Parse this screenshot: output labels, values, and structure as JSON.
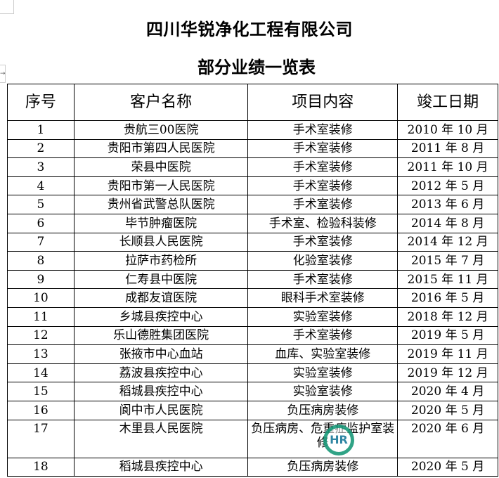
{
  "title": "四川华锐净化工程有限公司",
  "subtitle": "部分业绩一览表",
  "table": {
    "headers": [
      "序号",
      "客户名称",
      "项目内容",
      "竣工日期"
    ],
    "rows": [
      [
        "1",
        "贵航三00医院",
        "手术室装修",
        "2010 年 10 月"
      ],
      [
        "2",
        "贵阳市第四人民医院",
        "手术室装修",
        "2011 年 8 月"
      ],
      [
        "3",
        "荣县中医院",
        "手术室装修",
        "2011 年 10 月"
      ],
      [
        "4",
        "贵阳市第一人民医院",
        "手术室装修",
        "2012 年 5 月"
      ],
      [
        "5",
        "贵州省武警总队医院",
        "手术室装修",
        "2013 年 6 月"
      ],
      [
        "6",
        "毕节肿瘤医院",
        "手术室、检验科装修",
        "2014 年 8 月"
      ],
      [
        "7",
        "长顺县人民医院",
        "手术室装修",
        "2014 年 12 月"
      ],
      [
        "8",
        "拉萨市药检所",
        "化验室装修",
        "2015 年 7 月"
      ],
      [
        "9",
        "仁寿县中医院",
        "手术室装修",
        "2015 年 11 月"
      ],
      [
        "10",
        "成都友谊医院",
        "眼科手术室装修",
        "2016 年 5 月"
      ],
      [
        "11",
        "乡城县疾控中心",
        "实验室装修",
        "2018 年 12 月"
      ],
      [
        "12",
        "乐山德胜集团医院",
        "手术室装修",
        "2019 年 5 月"
      ],
      [
        "13",
        "张掖市中心血站",
        "血库、实验室装修",
        "2019 年 11 月"
      ],
      [
        "14",
        "荔波县疾控中心",
        "实验室装修",
        "2019 年 12 月"
      ],
      [
        "15",
        "稻城县疾控中心",
        "实验室装修",
        "2020 年 4 月"
      ],
      [
        "16",
        "阆中市人民医院",
        "负压病房装修",
        "2020 年 5 月"
      ],
      [
        "17",
        "木里县人民医院",
        "负压病房、危重症监护室装修",
        "2020 年 6 月"
      ],
      [
        "18",
        "稻城县疾控中心",
        "负压病房装修",
        "2020 年 5 月"
      ]
    ]
  },
  "watermark": {
    "text": "HR",
    "color": "#1a9a7a"
  }
}
